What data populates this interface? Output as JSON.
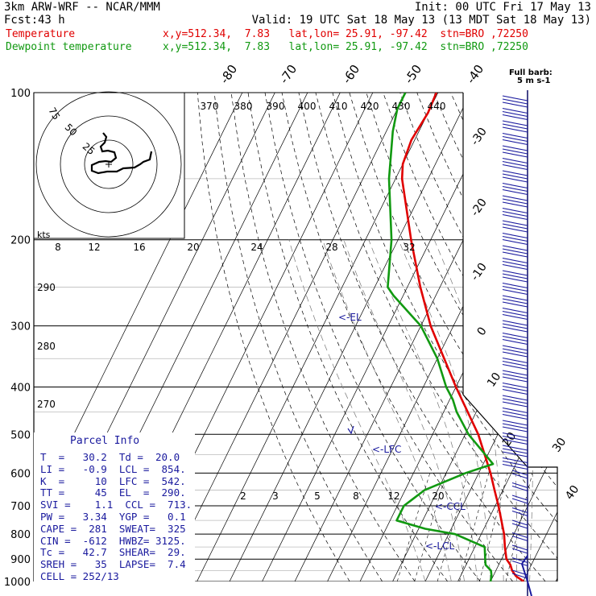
{
  "header": {
    "model": "3km ARW-WRF -- NCAR/MMM",
    "init": "Init: 00 UTC Fri 17 May 13",
    "fcst_label": "Fcst:",
    "fcst_value": "43 h",
    "valid": "Valid: 19 UTC Sat 18 May 13 (13 MDT Sat 18 May 13)"
  },
  "legend": [
    {
      "name": "Temperature",
      "info": "x,y=512.34,  7.83   lat,lon= 25.91, -97.42  stn=BRO ,72250",
      "color": "#e00000"
    },
    {
      "name": "Dewpoint temperature",
      "info": "x,y=512.34,  7.83   lat,lon= 25.91, -97.42  stn=BRO ,72250",
      "color": "#119911"
    }
  ],
  "barb_title": [
    "Full barb:",
    "5 m s-1"
  ],
  "chart_data": {
    "type": "line",
    "plot": "skew-T log-P sounding",
    "pressure_ticks": [
      "100",
      "200",
      "300",
      "400",
      "500",
      "600",
      "700",
      "800",
      "900",
      "1000"
    ],
    "top_temp_labels": [
      "-80",
      "-70",
      "-60",
      "-50",
      "-40"
    ],
    "right_temp_labels": [
      "-30",
      "-20",
      "-10",
      "0",
      "10",
      "20",
      "30",
      "40"
    ],
    "theta_labels": [
      "370",
      "380",
      "390",
      "400",
      "410",
      "420",
      "430",
      "440"
    ],
    "theta_left_labels": [
      "290",
      "280",
      "270"
    ],
    "hodo_speed_labels": [
      "8",
      "12",
      "16",
      "20",
      "24",
      "28",
      "32"
    ],
    "hodo_ring_labels": [
      "75",
      "50",
      "25"
    ],
    "hodo_units": "kts",
    "mixing_ratio_labels": [
      "2",
      "3",
      "5",
      "8",
      "12",
      "20"
    ],
    "level_labels": [
      "<-EL",
      "<-LFC",
      "<-CCL",
      "<-LCL"
    ],
    "series": [
      {
        "name": "Temperature",
        "color": "#e00000",
        "points": [
          [
            1000,
            30.2
          ],
          [
            975,
            27
          ],
          [
            950,
            25
          ],
          [
            925,
            23.6
          ],
          [
            900,
            21.5
          ],
          [
            850,
            19.2
          ],
          [
            800,
            17
          ],
          [
            700,
            11
          ],
          [
            650,
            7.4
          ],
          [
            600,
            3.6
          ],
          [
            500,
            -6
          ],
          [
            400,
            -20
          ],
          [
            300,
            -37
          ],
          [
            250,
            -46
          ],
          [
            200,
            -56
          ],
          [
            150,
            -68
          ],
          [
            140,
            -70
          ],
          [
            125,
            -71
          ],
          [
            110,
            -70
          ],
          [
            100,
            -70.5
          ]
        ]
      },
      {
        "name": "Dewpoint temperature",
        "color": "#119911",
        "points": [
          [
            1000,
            20
          ],
          [
            975,
            19.5
          ],
          [
            950,
            18.5
          ],
          [
            925,
            16
          ],
          [
            900,
            15
          ],
          [
            850,
            13
          ],
          [
            800,
            2
          ],
          [
            780,
            -8
          ],
          [
            750,
            -18
          ],
          [
            700,
            -18
          ],
          [
            650,
            -14
          ],
          [
            600,
            -4
          ],
          [
            575,
            3
          ],
          [
            500,
            -9
          ],
          [
            450,
            -16
          ],
          [
            425,
            -19
          ],
          [
            400,
            -23
          ],
          [
            350,
            -30
          ],
          [
            300,
            -40
          ],
          [
            260,
            -53
          ],
          [
            250,
            -56
          ],
          [
            200,
            -62
          ],
          [
            150,
            -72
          ],
          [
            120,
            -78
          ],
          [
            108,
            -80
          ],
          [
            100,
            -80
          ]
        ]
      }
    ]
  },
  "parcel_info": {
    "title": "Parcel Info",
    "rows": [
      "T  =   30.2  Td =  20.0",
      "LI =   -0.9  LCL =  854.",
      "K  =     10  LFC =  542.",
      "TT =     45  EL  =  290.",
      "SVI =    1.1  CCL =  713.",
      "PW =   3.34  YGP =   0.1",
      "CAPE =  281  SWEAT=  325",
      "CIN =  -612  HWBZ= 3125.",
      "Tc =   42.7  SHEAR=  29.",
      "SREH =   35  LAPSE=  7.4",
      "CELL = 252/13"
    ]
  }
}
